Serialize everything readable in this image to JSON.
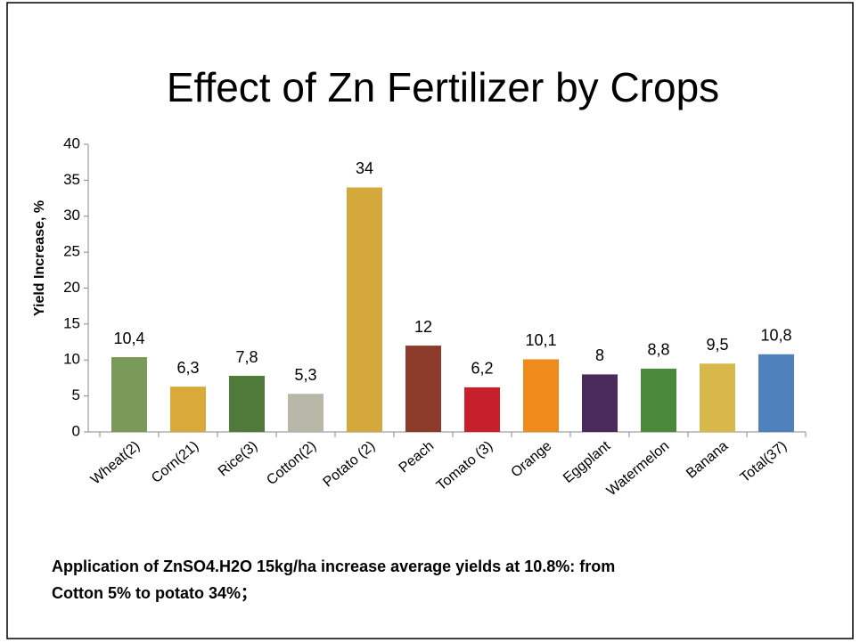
{
  "chart_data": {
    "type": "bar",
    "title": "Effect of Zn Fertilizer by Crops",
    "y_label": "Yield Increase, %",
    "categories": [
      "Wheat(2)",
      "Corn(21)",
      "Rice(3)",
      "Cotton(2)",
      "Potato (2)",
      "Peach",
      "Tomato (3)",
      "Orange",
      "Eggplant",
      "Watermelon",
      "Banana",
      "Total(37)"
    ],
    "values": [
      10.4,
      6.3,
      7.8,
      5.3,
      34,
      12,
      6.2,
      10.1,
      8,
      8.8,
      9.5,
      10.8
    ],
    "value_labels": [
      "10,4",
      "6,3",
      "7,8",
      "5,3",
      "34",
      "12",
      "6,2",
      "10,1",
      "8",
      "8,8",
      "9,5",
      "10,8"
    ],
    "colors": [
      "#7a9a5a",
      "#d9a93a",
      "#4f7a3a",
      "#b8b8a8",
      "#d4a83a",
      "#8c3a2a",
      "#c8202a",
      "#f08a1a",
      "#4a2a5a",
      "#4a8a3a",
      "#d8b84a",
      "#4f81bd"
    ],
    "ylim": [
      0,
      40
    ],
    "yticks": [
      0,
      5,
      10,
      15,
      20,
      25,
      30,
      35,
      40
    ],
    "note": [
      "Application of ZnSO4.H2O 15kg/ha increase average yields at 10.8%: from",
      "Cotton 5% to potato 34%；"
    ]
  }
}
